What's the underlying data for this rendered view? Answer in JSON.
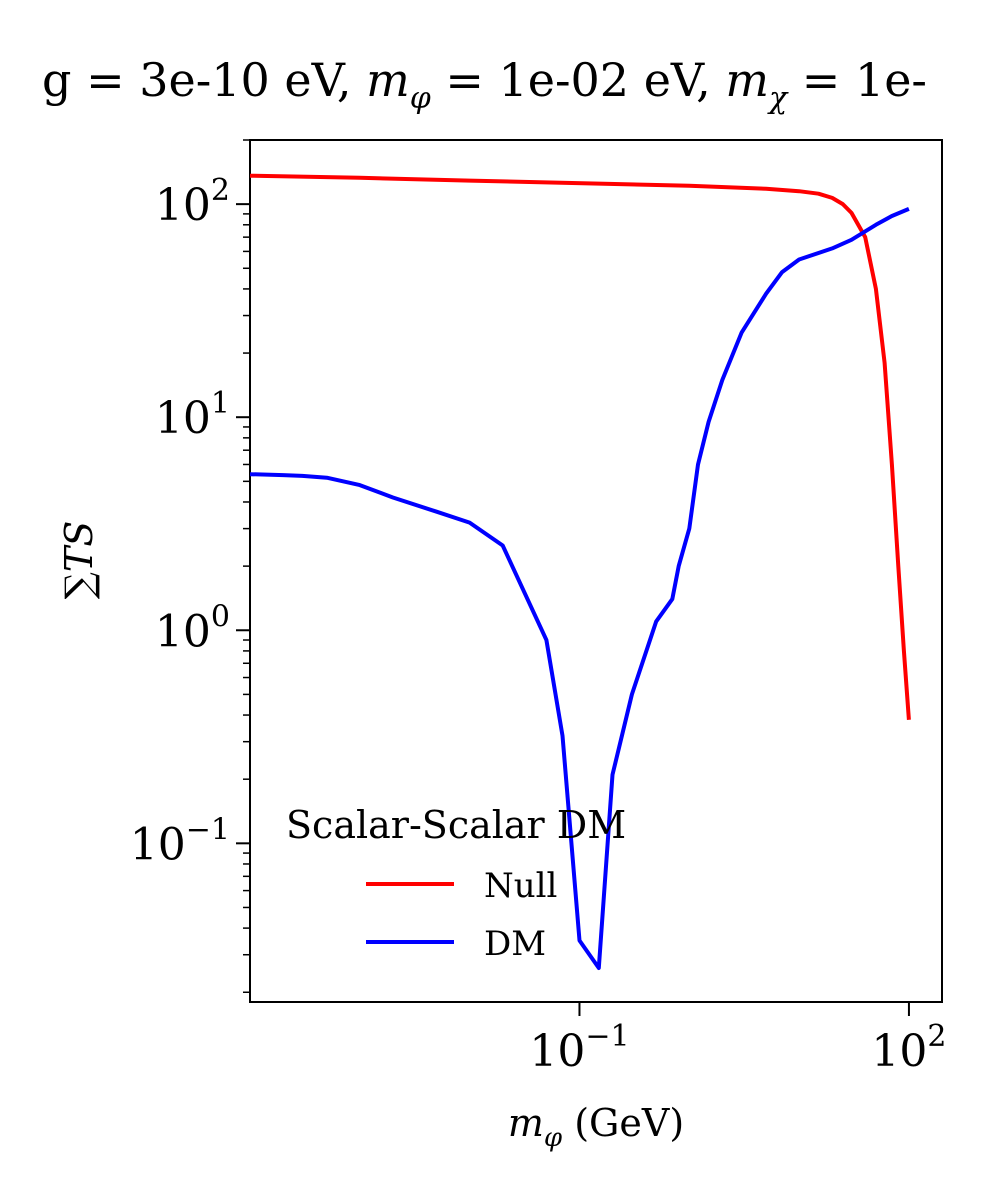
{
  "chart_data": {
    "type": "line",
    "title": "g = 3e-10 eV, m_φ = 1e-02 eV, m_χ = 1e-",
    "title_parts": {
      "g": "g = 3e-10 eV, ",
      "mphi_sym": "m",
      "mphi_sub": "φ",
      "mphi_val": " = 1e-02 eV, ",
      "mchi_sym": "m",
      "mchi_sub": "χ",
      "mchi_val": " = 1e-"
    },
    "xlabel": {
      "sym": "m",
      "sub": "φ",
      "unit": " (GeV)"
    },
    "ylabel": "∑TS",
    "x_scale": "log",
    "y_scale": "log",
    "xlim": [
      0.0001,
      200
    ],
    "ylim": [
      0.018,
      200
    ],
    "x_ticks": [
      {
        "value": 0.1,
        "base": "10",
        "exp": "−1"
      },
      {
        "value": 100,
        "base": "10",
        "exp": "2"
      }
    ],
    "y_ticks": [
      {
        "value": 0.1,
        "base": "10",
        "exp": "−1"
      },
      {
        "value": 1,
        "base": "10",
        "exp": "0"
      },
      {
        "value": 10,
        "base": "10",
        "exp": "1"
      },
      {
        "value": 100,
        "base": "10",
        "exp": "2"
      }
    ],
    "grid": false,
    "legend": {
      "title": "Scalar-Scalar DM",
      "position": "lower-left"
    },
    "series": [
      {
        "name": "Null",
        "color": "#ff0000",
        "x": [
          0.0001,
          0.001,
          0.01,
          1,
          5,
          10,
          15,
          20,
          25,
          30,
          40,
          50,
          60,
          70,
          80,
          90,
          100
        ],
        "y": [
          136,
          133,
          129,
          122,
          118,
          115,
          112,
          107,
          100,
          91,
          70,
          40,
          18,
          6,
          2,
          0.8,
          0.38
        ]
      },
      {
        "name": "DM",
        "color": "#0000ff",
        "x": [
          0.0001,
          0.0002,
          0.0003,
          0.0005,
          0.001,
          0.002,
          0.005,
          0.01,
          0.02,
          0.05,
          0.07,
          0.1,
          0.15,
          0.2,
          0.3,
          0.5,
          0.7,
          0.8,
          1,
          1.2,
          1.5,
          2,
          3,
          5,
          7,
          10,
          20,
          30,
          50,
          70,
          100
        ],
        "y": [
          5.4,
          5.35,
          5.3,
          5.2,
          4.8,
          4.2,
          3.6,
          3.2,
          2.5,
          0.9,
          0.32,
          0.035,
          0.026,
          0.21,
          0.5,
          1.1,
          1.4,
          2.0,
          3.0,
          6.0,
          9.5,
          15,
          25,
          38,
          48,
          55,
          62,
          68,
          80,
          88,
          95
        ]
      }
    ]
  }
}
